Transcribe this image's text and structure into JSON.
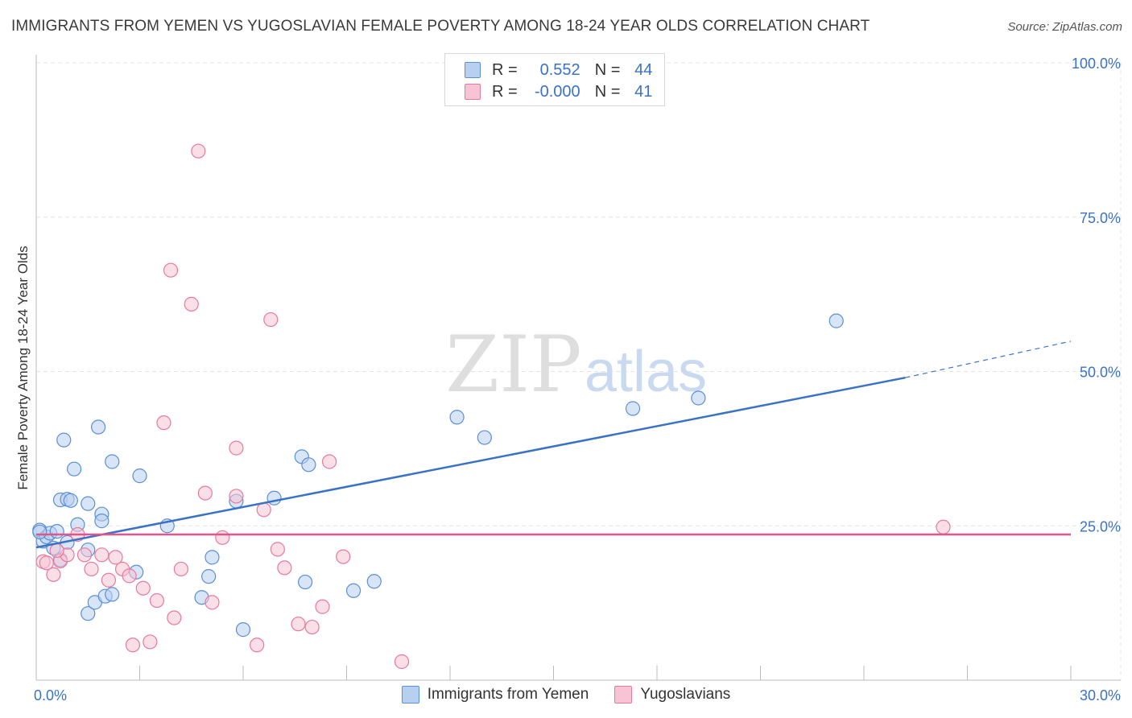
{
  "title": "IMMIGRANTS FROM YEMEN VS YUGOSLAVIAN FEMALE POVERTY AMONG 18-24 YEAR OLDS CORRELATION CHART",
  "source": "Source: ZipAtlas.com",
  "watermark": {
    "zip": "ZIP",
    "atlas": "atlas"
  },
  "legend": {
    "rows": [
      {
        "r_label": "R =",
        "r_value": "0.552",
        "n_label": "N =",
        "n_value": "44"
      },
      {
        "r_label": "R =",
        "r_value": "-0.000",
        "n_label": "N =",
        "n_value": "41"
      }
    ]
  },
  "chart_data": {
    "type": "scatter",
    "ylabel": "Female Poverty Among 18-24 Year Olds",
    "xlim": [
      0,
      30
    ],
    "ylim": [
      0,
      100
    ],
    "x_tick_labels": [
      "0.0%",
      "30.0%"
    ],
    "y_ticks": [
      25,
      50,
      75,
      100
    ],
    "y_tick_labels": [
      "25.0%",
      "50.0%",
      "75.0%",
      "100.0%"
    ],
    "grid": true,
    "legend_position": "top-center",
    "series": [
      {
        "name": "Immigrants from Yemen",
        "color": "#5b8fd6",
        "fill": "#b8d0f0",
        "trend": {
          "x0": 0,
          "y0": 21.5,
          "x1": 25.2,
          "y1": 49.0,
          "dash_to_x": 30,
          "dash_to_y": 54.9
        },
        "points": [
          [
            0.1,
            24.3
          ],
          [
            0.2,
            22.5
          ],
          [
            0.3,
            23.2
          ],
          [
            0.4,
            23.8
          ],
          [
            0.5,
            21.4
          ],
          [
            0.6,
            24.1
          ],
          [
            0.7,
            19.5
          ],
          [
            0.7,
            29.2
          ],
          [
            0.8,
            38.9
          ],
          [
            0.9,
            22.3
          ],
          [
            0.9,
            29.3
          ],
          [
            1.0,
            29.1
          ],
          [
            1.1,
            34.2
          ],
          [
            1.2,
            25.2
          ],
          [
            1.5,
            28.6
          ],
          [
            1.5,
            21.1
          ],
          [
            1.5,
            10.8
          ],
          [
            1.7,
            12.6
          ],
          [
            1.8,
            41.0
          ],
          [
            1.9,
            26.9
          ],
          [
            1.9,
            25.8
          ],
          [
            2.0,
            13.6
          ],
          [
            2.2,
            35.4
          ],
          [
            2.2,
            13.9
          ],
          [
            2.9,
            17.5
          ],
          [
            3.0,
            33.1
          ],
          [
            3.8,
            25.0
          ],
          [
            4.8,
            13.4
          ],
          [
            5.0,
            16.8
          ],
          [
            5.1,
            19.9
          ],
          [
            5.8,
            29.0
          ],
          [
            6.0,
            8.2
          ],
          [
            6.9,
            29.5
          ],
          [
            7.7,
            36.2
          ],
          [
            7.8,
            15.9
          ],
          [
            7.9,
            34.9
          ],
          [
            9.2,
            14.5
          ],
          [
            9.8,
            16.0
          ],
          [
            12.2,
            42.6
          ],
          [
            13.0,
            39.3
          ],
          [
            17.3,
            44.0
          ],
          [
            19.2,
            45.7
          ],
          [
            23.2,
            58.2
          ],
          [
            0.1,
            24.0
          ]
        ]
      },
      {
        "name": "Yugoslavians",
        "color": "#e8799e",
        "fill": "#f6c4d4",
        "trend": {
          "x0": 0,
          "y0": 23.6,
          "x1": 30,
          "y1": 23.6
        },
        "points": [
          [
            0.2,
            19.2
          ],
          [
            0.3,
            19.0
          ],
          [
            0.5,
            17.1
          ],
          [
            0.7,
            19.3
          ],
          [
            0.9,
            20.3
          ],
          [
            1.2,
            23.6
          ],
          [
            1.4,
            20.3
          ],
          [
            1.6,
            18.0
          ],
          [
            1.9,
            20.3
          ],
          [
            2.1,
            16.2
          ],
          [
            2.3,
            19.9
          ],
          [
            2.5,
            18.0
          ],
          [
            2.7,
            16.9
          ],
          [
            2.8,
            5.7
          ],
          [
            3.1,
            14.9
          ],
          [
            3.3,
            6.2
          ],
          [
            3.5,
            12.9
          ],
          [
            3.7,
            41.7
          ],
          [
            3.9,
            66.4
          ],
          [
            4.0,
            10.1
          ],
          [
            4.2,
            18.0
          ],
          [
            4.5,
            60.9
          ],
          [
            4.7,
            85.7
          ],
          [
            4.9,
            30.3
          ],
          [
            5.1,
            12.6
          ],
          [
            5.4,
            23.1
          ],
          [
            5.8,
            29.8
          ],
          [
            5.8,
            37.6
          ],
          [
            6.4,
            5.7
          ],
          [
            6.6,
            27.6
          ],
          [
            6.8,
            58.4
          ],
          [
            7.0,
            21.2
          ],
          [
            7.2,
            18.2
          ],
          [
            7.6,
            9.1
          ],
          [
            8.0,
            8.6
          ],
          [
            8.3,
            11.9
          ],
          [
            8.5,
            35.4
          ],
          [
            8.9,
            20.0
          ],
          [
            10.6,
            3.0
          ],
          [
            26.3,
            24.8
          ],
          [
            0.6,
            21.0
          ]
        ]
      }
    ]
  }
}
